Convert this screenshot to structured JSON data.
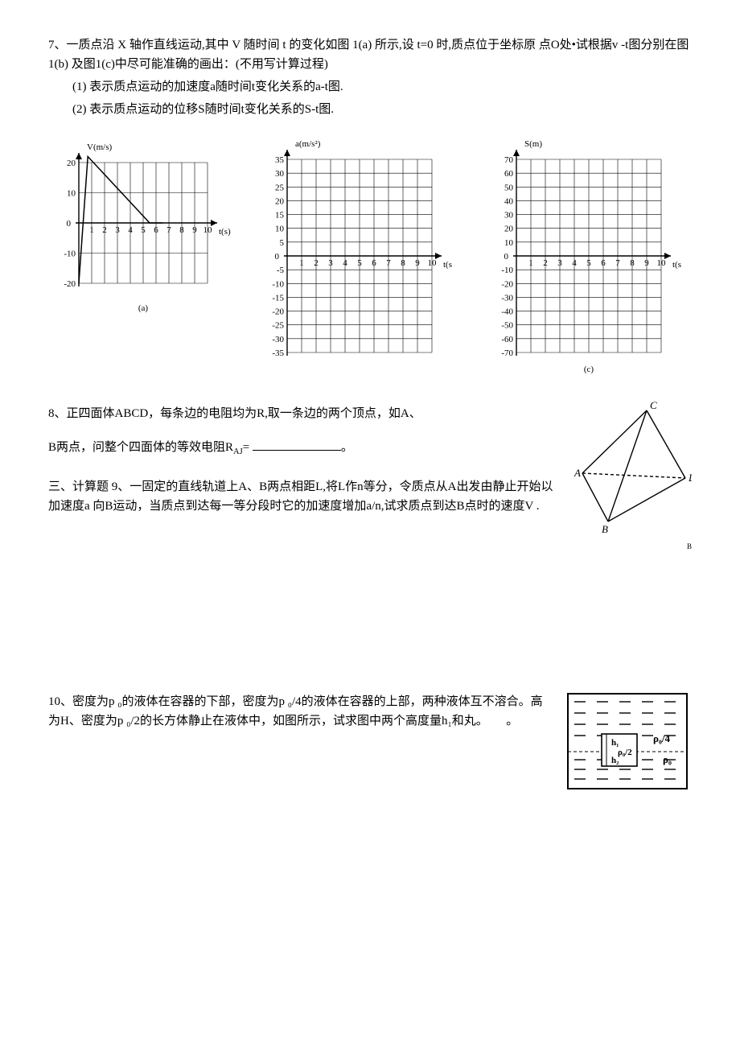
{
  "q7": {
    "prompt": "7、一质点沿 X 轴作直线运动,其中 V 随时间 t 的变化如图 1(a) 所示,设 t=0 时,质点位于坐标原 点O处•试根据v -t图分别在图1(b) 及图1(c)中尽可能准确的画出：(不用写计算过程)",
    "sub1": "(1) 表示质点运动的加速度a随时间t变化关系的a-t图.",
    "sub2": "(2) 表示质点运动的位移S随时间t变化关系的S-t图."
  },
  "chartA": {
    "type": "line",
    "ylabel": "V(m/s)",
    "xlabel": "t(s)",
    "caption": "(a)",
    "xrange": [
      0,
      10
    ],
    "xticks": [
      1,
      2,
      3,
      4,
      5,
      6,
      7,
      8,
      9,
      10
    ],
    "yrange": [
      -20,
      20
    ],
    "yticks": [
      -20,
      -10,
      0,
      10,
      20
    ],
    "grid_color": "#000000",
    "bg": "#ffffff",
    "line_color": "#000000",
    "line_width": 1.5,
    "series": [
      {
        "x": 0,
        "y": -20
      },
      {
        "x": 0.7,
        "y": 22
      },
      {
        "x": 5.5,
        "y": 0
      },
      {
        "x": 6.5,
        "y": 0
      }
    ],
    "font_size": 11
  },
  "chartB": {
    "type": "grid-template",
    "ylabel": "a(m/s²)",
    "xlabel": "t(s",
    "xrange": [
      0,
      10
    ],
    "xticks": [
      1,
      2,
      3,
      4,
      5,
      6,
      7,
      8,
      9,
      10
    ],
    "yrange": [
      -35,
      35
    ],
    "yticks": [
      -35,
      -30,
      -25,
      -20,
      -15,
      -10,
      -5,
      0,
      5,
      10,
      15,
      20,
      25,
      30,
      35
    ],
    "grid_color": "#000000",
    "bg": "#ffffff",
    "font_size": 11
  },
  "chartC": {
    "type": "grid-template",
    "ylabel": "S(m)",
    "xlabel": "t(s",
    "caption": "(c)",
    "xrange": [
      0,
      10
    ],
    "xticks": [
      1,
      2,
      3,
      4,
      5,
      6,
      7,
      8,
      9,
      10
    ],
    "yrange": [
      -70,
      70
    ],
    "yticks": [
      -70,
      -60,
      -50,
      -40,
      -30,
      -20,
      -10,
      0,
      10,
      20,
      30,
      40,
      50,
      60,
      70
    ],
    "grid_color": "#000000",
    "bg": "#ffffff",
    "font_size": 11
  },
  "q8": {
    "line1": "8、正四面体ABCD，每条边的电阻均为R,取一条边的两个顶点，如A、",
    "line2_prefix": "B两点，问整个四面体的等效电阻R",
    "line2_sub": "AJ",
    "line2_suffix": "= ",
    "line2_end": "。",
    "tet_labels": {
      "A": "A",
      "B": "B",
      "C": "C",
      "D": "D"
    },
    "fig_sub": "B"
  },
  "q9": {
    "text": "三、计算题 9、一固定的直线轨道上A、B两点相距L,将L作n等分，令质点从A出发由静止开始以加速度a 向B运动，当质点到达每一等分段时它的加速度增加a/n,试求质点到达B点时的速度V ."
  },
  "q10": {
    "text": "10、密度为p ₀的液体在容器的下部，密度为p ₀/4的液体在容器的上部，两种液体互不溶合。高为H、密度为p ₀/2的长方体静止在液体中，如图所示，试求图中两个高度量h₁和丸。　　。",
    "fig": {
      "rho_top": "ρ₀/4",
      "rho_bot": "ρ₀",
      "rho_block": "ρ₀/2",
      "h1": "h₁",
      "h2": "h₂"
    }
  }
}
